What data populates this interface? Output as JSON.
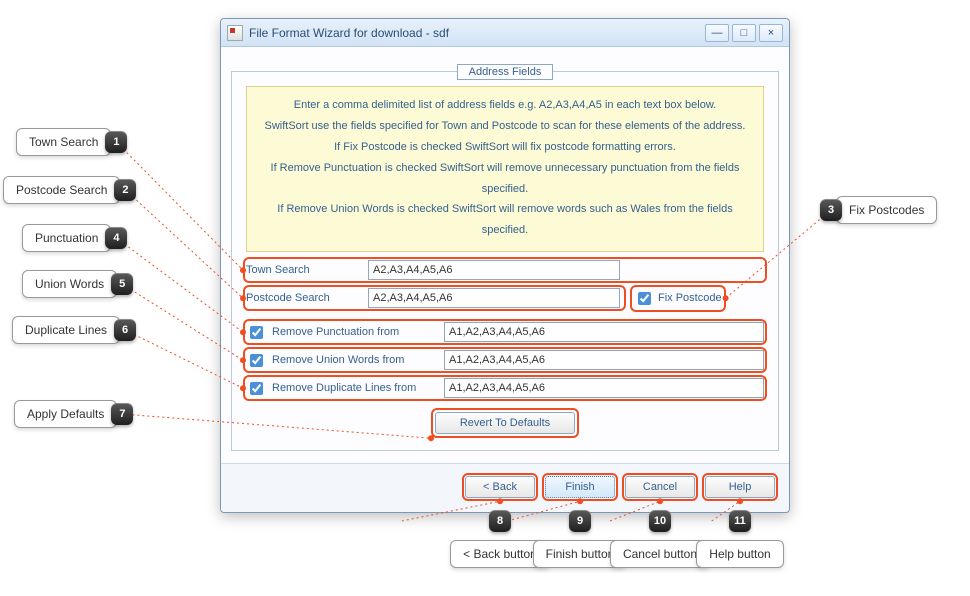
{
  "window": {
    "title": "File Format Wizard for download - sdf",
    "minimize": "—",
    "maximize": "□",
    "close": "×"
  },
  "fieldset_label": "Address Fields",
  "info_lines": [
    "Enter a comma delimited list of address fields  e.g. A2,A3,A4,A5 in each text box below.",
    "SwiftSort use the fields specified for Town and Postcode to scan for these elements of the address.",
    "If Fix Postcode is checked SwiftSort will fix postcode formatting errors.",
    "If Remove Punctuation is checked SwiftSort will remove unnecessary punctuation from the fields specified.",
    "If Remove Union Words is checked SwiftSort will remove words such as Wales from the fields specified."
  ],
  "form": {
    "town_search_label": "Town Search",
    "town_search_value": "A2,A3,A4,A5,A6",
    "postcode_search_label": "Postcode Search",
    "postcode_search_value": "A2,A3,A4,A5,A6",
    "fix_postcode_label": "Fix Postcode",
    "fix_postcode_checked": true,
    "remove_punctuation_label": "Remove Punctuation from",
    "remove_punctuation_checked": true,
    "remove_punctuation_value": "A1,A2,A3,A4,A5,A6",
    "remove_union_label": "Remove Union Words from",
    "remove_union_checked": true,
    "remove_union_value": "A1,A2,A3,A4,A5,A6",
    "remove_duplicate_label": "Remove Duplicate Lines from",
    "remove_duplicate_checked": true,
    "remove_duplicate_value": "A1,A2,A3,A4,A5,A6",
    "revert_label": "Revert To Defaults"
  },
  "buttons": {
    "back": "< Back",
    "finish": "Finish",
    "cancel": "Cancel",
    "help": "Help"
  },
  "callouts": {
    "c1": "Town Search",
    "c2": "Postcode Search",
    "c3": "Fix Postcodes",
    "c4": "Punctuation",
    "c5": "Union Words",
    "c6": "Duplicate Lines",
    "c7": "Apply Defaults",
    "c8": "< Back button",
    "c9": "Finish button",
    "c10": "Cancel button",
    "c11": "Help button"
  },
  "numbers": {
    "n1": "1",
    "n2": "2",
    "n3": "3",
    "n4": "4",
    "n5": "5",
    "n6": "6",
    "n7": "7",
    "n8": "8",
    "n9": "9",
    "n10": "10",
    "n11": "11"
  },
  "colors": {
    "highlight": "#ef4e23",
    "titlebar_top": "#e8f1fb",
    "titlebar_bottom": "#d2e3f5",
    "link_text": "#35608f",
    "infobox_bg": "#fdfbd6"
  }
}
